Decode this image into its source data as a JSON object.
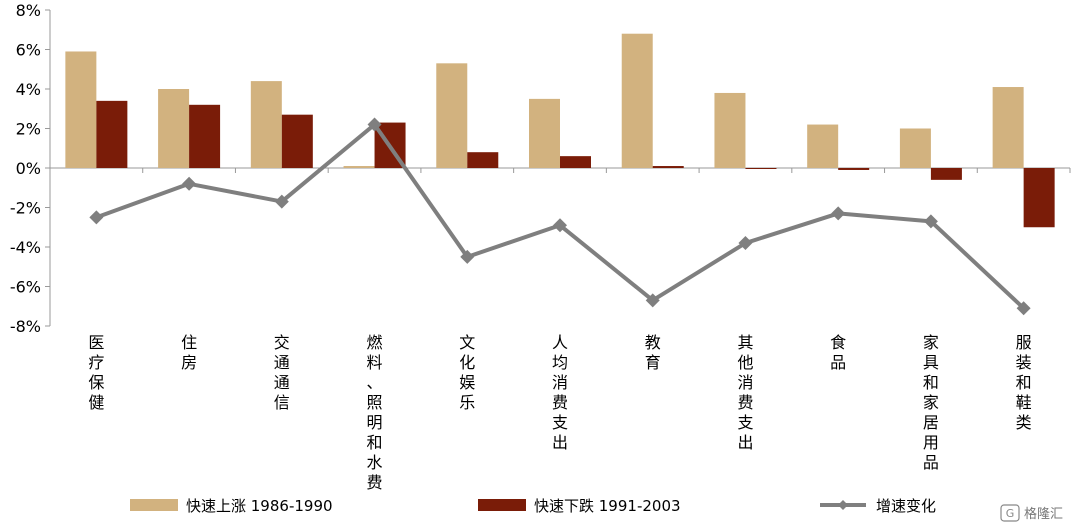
{
  "chart_data": {
    "type": "bar",
    "categories": [
      "医疗保健",
      "住房",
      "交通通信",
      "燃料、照明和水费",
      "文化娱乐",
      "人均消费支出",
      "教育",
      "其他消费支出",
      "食品",
      "家具和家居用品",
      "服装和鞋类"
    ],
    "series": [
      {
        "name": "快速上涨 1986-1990",
        "type": "bar",
        "color": "#d2b27f",
        "values": [
          5.9,
          4.0,
          4.4,
          0.1,
          5.3,
          3.5,
          6.8,
          3.8,
          2.2,
          2.0,
          4.1
        ]
      },
      {
        "name": "快速下跌 1991-2003",
        "type": "bar",
        "color": "#7a1c08",
        "values": [
          3.4,
          3.2,
          2.7,
          2.3,
          0.8,
          0.6,
          0.1,
          0.0,
          -0.1,
          -0.6,
          -3.0
        ]
      },
      {
        "name": "增速变化",
        "type": "line",
        "color": "#7f7f7f",
        "values": [
          -2.5,
          -0.8,
          -1.7,
          2.2,
          -4.5,
          -2.9,
          -6.7,
          -3.8,
          -2.3,
          -2.7,
          -7.1
        ]
      }
    ],
    "yticks": [
      "-8%",
      "-6%",
      "-4%",
      "-2%",
      "0%",
      "2%",
      "4%",
      "6%",
      "8%"
    ],
    "ylim": [
      -8,
      8
    ],
    "grid": false,
    "legend_position": "bottom"
  },
  "watermark": "格隆汇"
}
